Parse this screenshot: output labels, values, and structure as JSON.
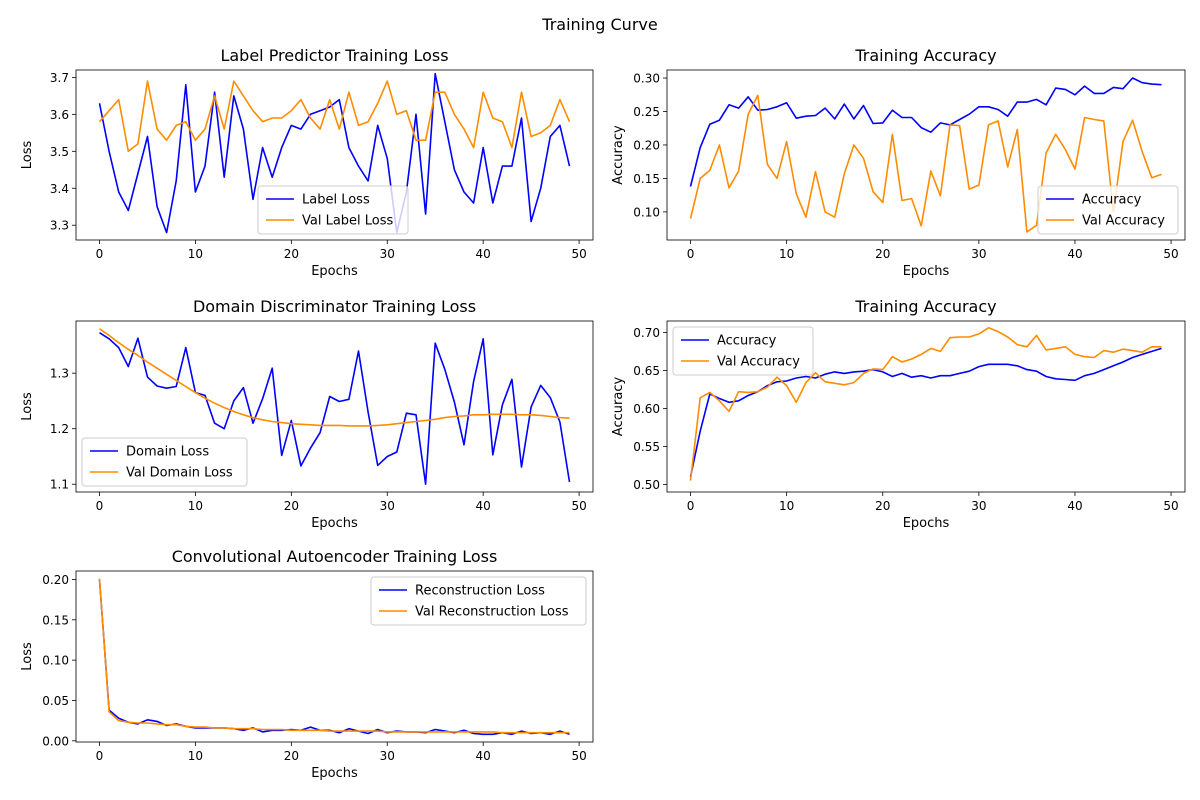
{
  "figure": {
    "suptitle": "Training Curve",
    "colors": {
      "primary": "#0000ff",
      "secondary": "#ff8c00"
    }
  },
  "chart_data": [
    {
      "type": "line",
      "title": "Label Predictor Training Loss",
      "xlabel": "Epochs",
      "ylabel": "Loss",
      "xlim": [
        -2.45,
        51.45
      ],
      "ylim": [
        3.26,
        3.72
      ],
      "xticks": [
        0,
        10,
        20,
        30,
        40,
        50
      ],
      "yticks": [
        3.3,
        3.4,
        3.5,
        3.6,
        3.7
      ],
      "ytick_labels": [
        "3.3",
        "3.4",
        "3.5",
        "3.6",
        "3.7"
      ],
      "legend_loc": "lower-center",
      "series": [
        {
          "name": "Label Loss",
          "color": "#0000ff",
          "x_start": 0,
          "values": [
            3.63,
            3.5,
            3.39,
            3.34,
            3.44,
            3.54,
            3.35,
            3.28,
            3.42,
            3.68,
            3.39,
            3.46,
            3.66,
            3.43,
            3.65,
            3.56,
            3.37,
            3.51,
            3.43,
            3.51,
            3.57,
            3.56,
            3.6,
            3.61,
            3.62,
            3.64,
            3.51,
            3.46,
            3.42,
            3.57,
            3.48,
            3.28,
            3.39,
            3.6,
            3.33,
            3.71,
            3.58,
            3.45,
            3.39,
            3.36,
            3.51,
            3.36,
            3.46,
            3.46,
            3.59,
            3.31,
            3.4,
            3.54,
            3.57,
            3.46
          ]
        },
        {
          "name": "Val Label Loss",
          "color": "#ff8c00",
          "x_start": 0,
          "values": [
            3.58,
            3.61,
            3.64,
            3.5,
            3.52,
            3.69,
            3.56,
            3.53,
            3.57,
            3.58,
            3.53,
            3.56,
            3.65,
            3.56,
            3.69,
            3.65,
            3.61,
            3.58,
            3.59,
            3.59,
            3.61,
            3.64,
            3.59,
            3.56,
            3.64,
            3.56,
            3.66,
            3.57,
            3.58,
            3.63,
            3.69,
            3.6,
            3.61,
            3.53,
            3.53,
            3.66,
            3.66,
            3.6,
            3.56,
            3.51,
            3.66,
            3.59,
            3.58,
            3.51,
            3.66,
            3.54,
            3.55,
            3.57,
            3.64,
            3.58
          ]
        }
      ]
    },
    {
      "type": "line",
      "title": "Training Accuracy",
      "xlabel": "Epochs",
      "ylabel": "Accuracy",
      "xlim": [
        -2.45,
        51.45
      ],
      "ylim": [
        0.058,
        0.312
      ],
      "xticks": [
        0,
        10,
        20,
        30,
        40,
        50
      ],
      "yticks": [
        0.1,
        0.15,
        0.2,
        0.25,
        0.3
      ],
      "ytick_labels": [
        "0.10",
        "0.15",
        "0.20",
        "0.25",
        "0.30"
      ],
      "legend_loc": "lower-right",
      "series": [
        {
          "name": "Accuracy",
          "color": "#0000ff",
          "x_start": 0,
          "values": [
            0.138,
            0.196,
            0.231,
            0.237,
            0.26,
            0.255,
            0.272,
            0.252,
            0.253,
            0.257,
            0.263,
            0.24,
            0.243,
            0.244,
            0.255,
            0.239,
            0.261,
            0.239,
            0.259,
            0.232,
            0.233,
            0.252,
            0.241,
            0.241,
            0.226,
            0.219,
            0.233,
            0.23,
            0.238,
            0.246,
            0.257,
            0.257,
            0.253,
            0.243,
            0.264,
            0.264,
            0.268,
            0.26,
            0.285,
            0.283,
            0.275,
            0.288,
            0.277,
            0.277,
            0.286,
            0.284,
            0.3,
            0.293,
            0.291,
            0.29
          ]
        },
        {
          "name": "Val Accuracy",
          "color": "#ff8c00",
          "x_start": 0,
          "values": [
            0.09,
            0.15,
            0.162,
            0.2,
            0.136,
            0.161,
            0.246,
            0.274,
            0.171,
            0.15,
            0.205,
            0.127,
            0.092,
            0.16,
            0.1,
            0.092,
            0.157,
            0.2,
            0.18,
            0.13,
            0.114,
            0.216,
            0.117,
            0.12,
            0.079,
            0.161,
            0.124,
            0.23,
            0.229,
            0.134,
            0.14,
            0.23,
            0.236,
            0.167,
            0.223,
            0.07,
            0.08,
            0.188,
            0.216,
            0.193,
            0.164,
            0.241,
            0.238,
            0.236,
            0.1,
            0.205,
            0.237,
            0.19,
            0.151,
            0.156
          ]
        }
      ]
    },
    {
      "type": "line",
      "title": "Domain Discriminator Training Loss",
      "xlabel": "Epochs",
      "ylabel": "Loss",
      "xlim": [
        -2.45,
        51.45
      ],
      "ylim": [
        1.086,
        1.394
      ],
      "xticks": [
        0,
        10,
        20,
        30,
        40,
        50
      ],
      "yticks": [
        1.1,
        1.2,
        1.3
      ],
      "ytick_labels": [
        "1.1",
        "1.2",
        "1.3"
      ],
      "legend_loc": "lower-left",
      "series": [
        {
          "name": "Domain Loss",
          "color": "#0000ff",
          "x_start": 0,
          "values": [
            1.373,
            1.362,
            1.346,
            1.312,
            1.363,
            1.293,
            1.277,
            1.273,
            1.276,
            1.346,
            1.265,
            1.26,
            1.21,
            1.2,
            1.25,
            1.274,
            1.21,
            1.254,
            1.309,
            1.152,
            1.215,
            1.133,
            1.165,
            1.193,
            1.258,
            1.249,
            1.253,
            1.34,
            1.23,
            1.134,
            1.15,
            1.158,
            1.228,
            1.225,
            1.1,
            1.354,
            1.307,
            1.248,
            1.171,
            1.285,
            1.362,
            1.153,
            1.243,
            1.289,
            1.131,
            1.239,
            1.278,
            1.256,
            1.212,
            1.104
          ]
        },
        {
          "name": "Val Domain Loss",
          "color": "#ff8c00",
          "x_start": 0,
          "values": [
            1.38,
            1.368,
            1.355,
            1.343,
            1.332,
            1.32,
            1.309,
            1.298,
            1.287,
            1.276,
            1.265,
            1.255,
            1.246,
            1.238,
            1.231,
            1.225,
            1.22,
            1.216,
            1.213,
            1.211,
            1.209,
            1.208,
            1.207,
            1.206,
            1.206,
            1.206,
            1.205,
            1.205,
            1.205,
            1.206,
            1.207,
            1.209,
            1.211,
            1.213,
            1.215,
            1.217,
            1.22,
            1.222,
            1.223,
            1.225,
            1.225,
            1.226,
            1.226,
            1.226,
            1.225,
            1.225,
            1.224,
            1.222,
            1.22,
            1.219
          ]
        }
      ]
    },
    {
      "type": "line",
      "title": "Training Accuracy",
      "xlabel": "Epochs",
      "ylabel": "Accuracy",
      "xlim": [
        -2.45,
        51.45
      ],
      "ylim": [
        0.49,
        0.715
      ],
      "xticks": [
        0,
        10,
        20,
        30,
        40,
        50
      ],
      "yticks": [
        0.5,
        0.55,
        0.6,
        0.65,
        0.7
      ],
      "ytick_labels": [
        "0.50",
        "0.55",
        "0.60",
        "0.65",
        "0.70"
      ],
      "legend_loc": "upper-left",
      "series": [
        {
          "name": "Accuracy",
          "color": "#0000ff",
          "x_start": 0,
          "values": [
            0.51,
            0.57,
            0.619,
            0.613,
            0.608,
            0.61,
            0.617,
            0.622,
            0.63,
            0.635,
            0.636,
            0.64,
            0.642,
            0.64,
            0.645,
            0.648,
            0.646,
            0.648,
            0.649,
            0.651,
            0.648,
            0.642,
            0.646,
            0.641,
            0.643,
            0.64,
            0.643,
            0.643,
            0.646,
            0.649,
            0.655,
            0.658,
            0.658,
            0.658,
            0.656,
            0.651,
            0.649,
            0.642,
            0.639,
            0.638,
            0.637,
            0.643,
            0.646,
            0.651,
            0.656,
            0.661,
            0.667,
            0.671,
            0.675,
            0.679
          ]
        },
        {
          "name": "Val Accuracy",
          "color": "#ff8c00",
          "x_start": 0,
          "values": [
            0.505,
            0.614,
            0.621,
            0.61,
            0.596,
            0.622,
            0.621,
            0.622,
            0.628,
            0.641,
            0.63,
            0.608,
            0.634,
            0.647,
            0.635,
            0.633,
            0.631,
            0.634,
            0.646,
            0.652,
            0.651,
            0.668,
            0.661,
            0.665,
            0.671,
            0.679,
            0.675,
            0.693,
            0.694,
            0.694,
            0.698,
            0.706,
            0.701,
            0.694,
            0.684,
            0.681,
            0.696,
            0.677,
            0.679,
            0.681,
            0.671,
            0.668,
            0.667,
            0.676,
            0.674,
            0.678,
            0.676,
            0.674,
            0.681,
            0.681
          ]
        }
      ]
    },
    {
      "type": "line",
      "title": "Convolutional Autoencoder Training Loss",
      "xlabel": "Epochs",
      "ylabel": "Loss",
      "xlim": [
        -2.45,
        51.45
      ],
      "ylim": [
        -0.0015,
        0.2105
      ],
      "xticks": [
        0,
        10,
        20,
        30,
        40,
        50
      ],
      "yticks": [
        0.0,
        0.05,
        0.1,
        0.15,
        0.2
      ],
      "ytick_labels": [
        "0.00",
        "0.05",
        "0.10",
        "0.15",
        "0.20"
      ],
      "legend_loc": "upper-right",
      "series": [
        {
          "name": "Reconstruction Loss",
          "color": "#0000ff",
          "x_start": 0,
          "values": [
            0.2,
            0.038,
            0.028,
            0.023,
            0.021,
            0.026,
            0.024,
            0.019,
            0.021,
            0.018,
            0.016,
            0.016,
            0.016,
            0.016,
            0.015,
            0.013,
            0.016,
            0.011,
            0.013,
            0.013,
            0.014,
            0.013,
            0.017,
            0.013,
            0.013,
            0.01,
            0.015,
            0.012,
            0.009,
            0.014,
            0.01,
            0.012,
            0.011,
            0.011,
            0.01,
            0.014,
            0.012,
            0.01,
            0.013,
            0.009,
            0.008,
            0.008,
            0.01,
            0.008,
            0.012,
            0.009,
            0.01,
            0.008,
            0.012,
            0.008
          ]
        },
        {
          "name": "Val Reconstruction Loss",
          "color": "#ff8c00",
          "x_start": 0,
          "values": [
            0.201,
            0.036,
            0.025,
            0.023,
            0.022,
            0.022,
            0.021,
            0.02,
            0.02,
            0.018,
            0.017,
            0.017,
            0.016,
            0.016,
            0.015,
            0.015,
            0.015,
            0.014,
            0.014,
            0.014,
            0.013,
            0.013,
            0.013,
            0.013,
            0.012,
            0.012,
            0.012,
            0.012,
            0.012,
            0.012,
            0.011,
            0.011,
            0.011,
            0.011,
            0.011,
            0.011,
            0.011,
            0.011,
            0.011,
            0.011,
            0.011,
            0.011,
            0.01,
            0.01,
            0.01,
            0.01,
            0.01,
            0.01,
            0.01,
            0.01
          ]
        }
      ]
    }
  ]
}
